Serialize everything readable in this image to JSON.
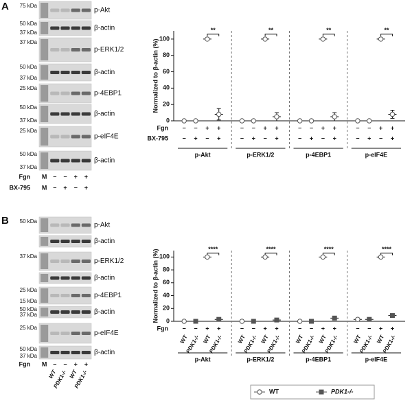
{
  "chart_data": [
    {
      "type": "dot",
      "panel": "A",
      "ylabel": "Normalized to β-actin (%)",
      "ylim": [
        0,
        110
      ],
      "yticks": [
        0,
        20,
        40,
        60,
        80,
        100
      ],
      "groups": [
        "p-Akt",
        "p-ERK1/2",
        "p-4EBP1",
        "p-eIF4E"
      ],
      "significance": [
        "**",
        "**",
        "**",
        "**"
      ],
      "rows": [
        {
          "label": "Fgn",
          "signs": [
            "−",
            "−",
            "+",
            "+"
          ]
        },
        {
          "label": "BX-795",
          "signs": [
            "−",
            "+",
            "−",
            "+"
          ]
        }
      ],
      "series": [
        {
          "color": "#555555",
          "marker": "circle",
          "filled": false,
          "values": [
            0,
            0,
            100,
            8,
            0,
            0,
            100,
            5,
            0,
            0,
            100,
            5,
            0,
            0,
            100,
            8
          ],
          "errors": [
            0,
            0,
            0,
            7,
            0,
            0,
            0,
            5,
            0,
            0,
            0,
            5,
            0,
            0,
            0,
            5
          ]
        }
      ]
    },
    {
      "type": "dot",
      "panel": "B",
      "ylabel": "Normalized to β-actin (%)",
      "ylim": [
        0,
        110
      ],
      "yticks": [
        0,
        20,
        40,
        60,
        80,
        100
      ],
      "groups": [
        "p-Akt",
        "p-ERK1/2",
        "p-4EBP1",
        "p-eIF4E"
      ],
      "significance": [
        "****",
        "****",
        "****",
        "****"
      ],
      "rows": [
        {
          "label": "Fgn",
          "signs": [
            "−",
            "−",
            "+",
            "+"
          ]
        }
      ],
      "categories": [
        "WT",
        "PDK1-/-",
        "WT",
        "PDK1-/-",
        "WT",
        "PDK1-/-",
        "WT",
        "PDK1-/-",
        "WT",
        "PDK1-/-",
        "WT",
        "PDK1-/-",
        "WT",
        "PDK1-/-",
        "WT",
        "PDK1-/-"
      ],
      "series": [
        {
          "name": "WT",
          "color": "#555555",
          "marker": "circle",
          "filled": false,
          "values": [
            0,
            null,
            100,
            null,
            0,
            null,
            100,
            null,
            0,
            null,
            100,
            null,
            3,
            null,
            100,
            null
          ],
          "errors": [
            0,
            null,
            0,
            null,
            0,
            null,
            0,
            null,
            0,
            null,
            0,
            null,
            2,
            null,
            0,
            null
          ]
        },
        {
          "name": "PDK1-/-",
          "color": "#555555",
          "marker": "square",
          "filled": true,
          "values": [
            null,
            0,
            null,
            3,
            null,
            0,
            null,
            2,
            null,
            0,
            null,
            5,
            null,
            3,
            null,
            9
          ],
          "errors": [
            null,
            0,
            null,
            2,
            null,
            0,
            null,
            1,
            null,
            0,
            null,
            2,
            null,
            1,
            null,
            2
          ]
        }
      ]
    }
  ],
  "blots": [
    {
      "strips": [
        {
          "label": "p-Akt",
          "markers": [
            "75 kDa"
          ]
        },
        {
          "label": "β-actin",
          "markers": [
            "50 kDa",
            "37 kDa"
          ]
        },
        {
          "label": "p-ERK1/2",
          "markers": [
            "37 kDa"
          ]
        },
        {
          "label": "β-actin",
          "markers": [
            "50 kDa",
            "37 kDa"
          ]
        },
        {
          "label": "p-4EBP1",
          "markers": [
            "25 kDa"
          ]
        },
        {
          "label": "β-actin",
          "markers": [
            "50 kDa",
            "37 kDa"
          ]
        },
        {
          "label": "p-eIF4E",
          "markers": [
            "25 kDa"
          ]
        },
        {
          "label": "β-actin",
          "markers": [
            "50 kDa",
            "37 kDa"
          ]
        }
      ],
      "rows": [
        {
          "label": "Fgn",
          "lanes": [
            "M",
            "−",
            "−",
            "+",
            "+"
          ]
        },
        {
          "label": "BX-795",
          "lanes": [
            "M",
            "−",
            "+",
            "−",
            "+"
          ]
        }
      ]
    },
    {
      "strips": [
        {
          "label": "p-Akt",
          "markers": [
            "50 kDa"
          ]
        },
        {
          "label": "β-actin",
          "markers": []
        },
        {
          "label": "p-ERK1/2",
          "markers": [
            "37 kDa"
          ]
        },
        {
          "label": "β-actin",
          "markers": []
        },
        {
          "label": "p-4EBP1",
          "markers": [
            "25 kDa",
            "15 kDa"
          ]
        },
        {
          "label": "β-actin",
          "markers": [
            "50 kDa",
            "37 kDa"
          ]
        },
        {
          "label": "p-eIF4E",
          "markers": [
            "25 kDa"
          ]
        },
        {
          "label": "β-actin",
          "markers": [
            "50 kDa",
            "37 kDa"
          ]
        }
      ],
      "rows": [
        {
          "label": "Fgn",
          "lanes": [
            "M",
            "−",
            "−",
            "+",
            "+"
          ]
        }
      ],
      "genotypes": [
        "WT",
        "PDK1-/-",
        "WT",
        "PDK1-/-"
      ]
    }
  ]
}
